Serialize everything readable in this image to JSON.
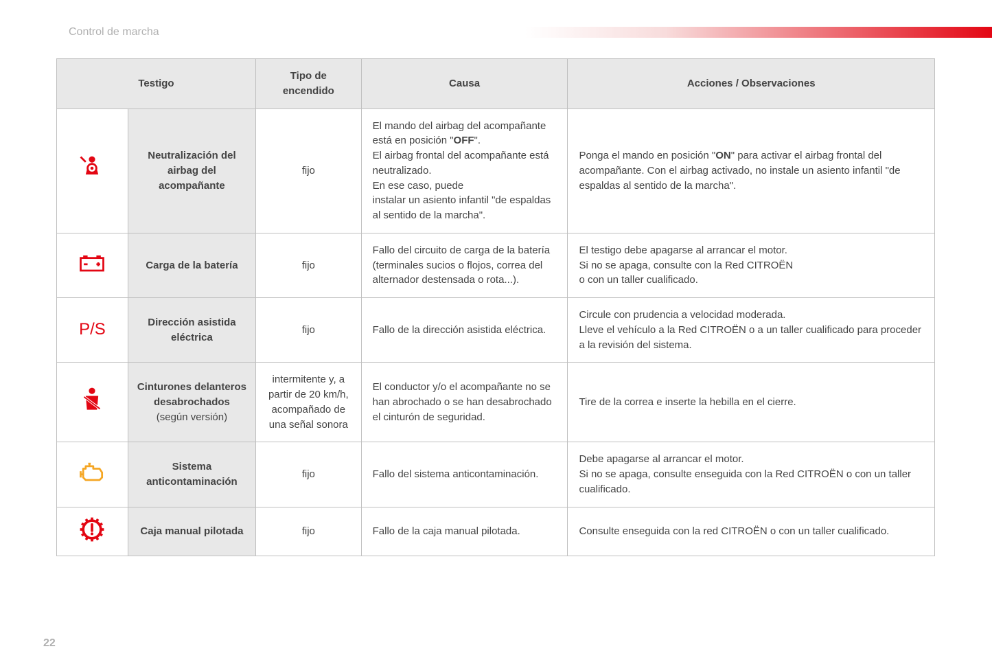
{
  "header": {
    "title": "Control de marcha"
  },
  "pageNumber": "22",
  "table": {
    "columns": {
      "col1": "Testigo",
      "col2": "Tipo de encendido",
      "col3": "Causa",
      "col4": "Acciones / Observaciones"
    },
    "rows": [
      {
        "icon": "airbag-off-icon",
        "iconColor": "#e30613",
        "name": "Neutralización del airbag del acompañante",
        "nameSub": "",
        "type": "fijo",
        "cause": "El mando del airbag del acompañante está en posición \"<b>OFF</b>\".\nEl airbag frontal del acompañante está neutralizado.\nEn ese caso, puede\ninstalar un asiento infantil \"de espaldas al sentido de la marcha\".",
        "action": "Ponga el mando en posición \"<b>ON</b>\" para activar el airbag frontal del acompañante. Con el airbag activado, no instale un asiento infantil \"de espaldas al sentido de la marcha\"."
      },
      {
        "icon": "battery-icon",
        "iconColor": "#e30613",
        "name": "Carga de la batería",
        "nameSub": "",
        "type": "fijo",
        "cause": "Fallo del circuito de carga de la batería (terminales sucios o flojos, correa del alternador destensada o rota...).",
        "action": "El testigo debe apagarse al arrancar el motor.\nSi no se apaga, consulte con la Red CITROËN\no con un taller cualificado."
      },
      {
        "icon": "ps-text",
        "iconColor": "#e30613",
        "name": "Dirección asistida eléctrica",
        "nameSub": "",
        "type": "fijo",
        "cause": "Fallo de la dirección asistida eléctrica.",
        "action": "Circule con prudencia a velocidad moderada.\nLleve el vehículo a la Red CITROËN o a un taller cualificado para proceder a la revisión del sistema."
      },
      {
        "icon": "seatbelt-icon",
        "iconColor": "#e30613",
        "name": "Cinturones delanteros desabrochados",
        "nameSub": "(según versión)",
        "type": "intermitente y, a partir de 20 km/h, acompañado de una señal sonora",
        "cause": "El conductor y/o el acompañante no se han abrochado o se han desabrochado el cinturón de seguridad.",
        "action": "Tire de la correa e inserte la hebilla en el cierre."
      },
      {
        "icon": "engine-icon",
        "iconColor": "#f5a623",
        "name": "Sistema anticontaminación",
        "nameSub": "",
        "type": "fijo",
        "cause": "Fallo del sistema anticontaminación.",
        "action": "Debe apagarse al arrancar el motor.\nSi no se apaga, consulte enseguida con la Red CITROËN o con un taller cualificado."
      },
      {
        "icon": "gear-warning-icon",
        "iconColor": "#e30613",
        "name": "Caja manual pilotada",
        "nameSub": "",
        "type": "fijo",
        "cause": "Fallo de la caja manual pilotada.",
        "action": "Consulte enseguida con la red CITROËN o con un taller cualificado."
      }
    ]
  }
}
